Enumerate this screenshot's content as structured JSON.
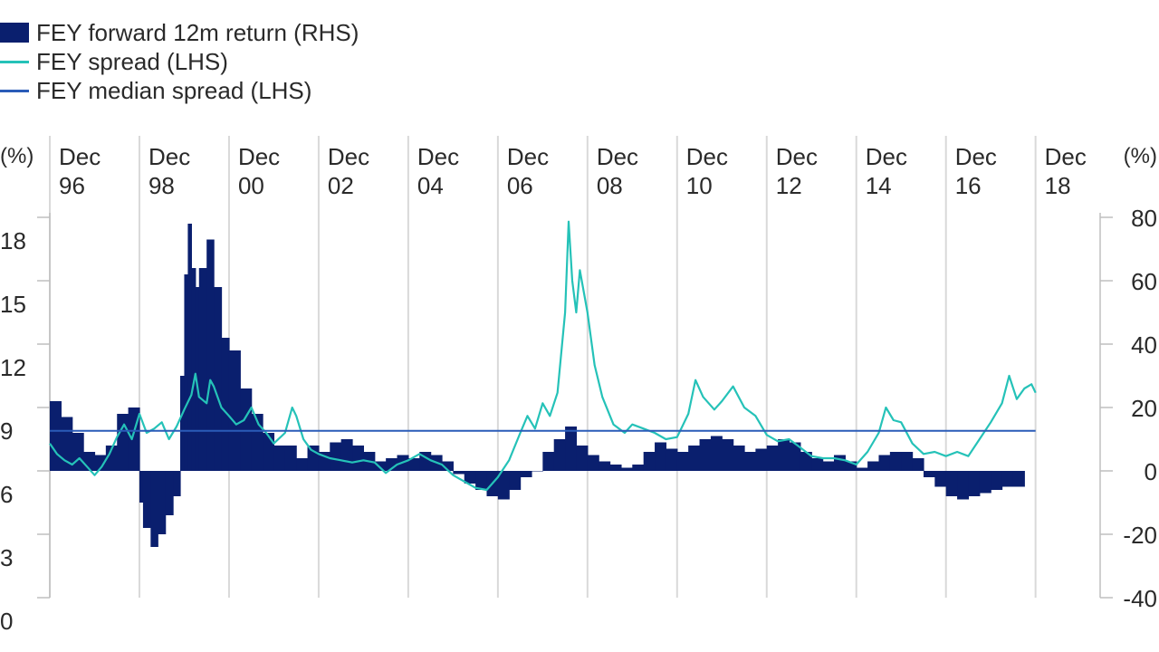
{
  "legend": {
    "returns": "FEY forward 12m return (RHS)",
    "spread": "FEY spread (LHS)",
    "median": "FEY median spread (LHS)"
  },
  "colors": {
    "returns": "#0a1f6e",
    "spread": "#25c2b8",
    "median": "#2a5cb8",
    "grid": "#d9d9d9",
    "axis": "#bfbfbf"
  },
  "chart_data": {
    "type": "bar",
    "left_axis": {
      "unit": "(%)",
      "ylim": [
        0,
        18
      ],
      "ticks": [
        18,
        15,
        12,
        9,
        6,
        3,
        0
      ]
    },
    "right_axis": {
      "unit": "(%)",
      "ylim": [
        -40,
        80
      ],
      "ticks": [
        80,
        60,
        40,
        20,
        0,
        -20,
        -40
      ]
    },
    "x_axis": {
      "range": [
        1996.92,
        2019.25
      ],
      "ticks": [
        {
          "x": 1996.92,
          "line1": "Dec",
          "line2": "96"
        },
        {
          "x": 1998.92,
          "line1": "Dec",
          "line2": "98"
        },
        {
          "x": 2000.92,
          "line1": "Dec",
          "line2": "00"
        },
        {
          "x": 2002.92,
          "line1": "Dec",
          "line2": "02"
        },
        {
          "x": 2004.92,
          "line1": "Dec",
          "line2": "04"
        },
        {
          "x": 2006.92,
          "line1": "Dec",
          "line2": "06"
        },
        {
          "x": 2008.92,
          "line1": "Dec",
          "line2": "08"
        },
        {
          "x": 2010.92,
          "line1": "Dec",
          "line2": "10"
        },
        {
          "x": 2012.92,
          "line1": "Dec",
          "line2": "12"
        },
        {
          "x": 2014.92,
          "line1": "Dec",
          "line2": "14"
        },
        {
          "x": 2016.92,
          "line1": "Dec",
          "line2": "16"
        },
        {
          "x": 2018.92,
          "line1": "Dec",
          "line2": "18"
        }
      ]
    },
    "grid": "vertical",
    "series": [
      {
        "name": "FEY forward 12m return (RHS)",
        "kind": "bar",
        "axis": "right",
        "points": [
          [
            1996.92,
            22
          ],
          [
            1997.17,
            17
          ],
          [
            1997.42,
            12
          ],
          [
            1997.67,
            6
          ],
          [
            1997.92,
            5
          ],
          [
            1998.17,
            8
          ],
          [
            1998.42,
            18
          ],
          [
            1998.67,
            20
          ],
          [
            1998.92,
            -10
          ],
          [
            1999.0,
            -18
          ],
          [
            1999.17,
            -24
          ],
          [
            1999.33,
            -20
          ],
          [
            1999.5,
            -14
          ],
          [
            1999.67,
            -8
          ],
          [
            1999.83,
            30
          ],
          [
            1999.92,
            62
          ],
          [
            2000.0,
            78
          ],
          [
            2000.08,
            64
          ],
          [
            2000.17,
            58
          ],
          [
            2000.25,
            64
          ],
          [
            2000.42,
            73
          ],
          [
            2000.58,
            58
          ],
          [
            2000.75,
            42
          ],
          [
            2000.92,
            38
          ],
          [
            2001.17,
            26
          ],
          [
            2001.42,
            18
          ],
          [
            2001.67,
            12
          ],
          [
            2001.92,
            8
          ],
          [
            2002.17,
            8
          ],
          [
            2002.42,
            4
          ],
          [
            2002.67,
            8
          ],
          [
            2002.92,
            6
          ],
          [
            2003.17,
            9
          ],
          [
            2003.42,
            10
          ],
          [
            2003.67,
            8
          ],
          [
            2003.92,
            6
          ],
          [
            2004.17,
            3
          ],
          [
            2004.42,
            4
          ],
          [
            2004.67,
            5
          ],
          [
            2004.92,
            4
          ],
          [
            2005.17,
            6
          ],
          [
            2005.42,
            5
          ],
          [
            2005.67,
            3
          ],
          [
            2005.92,
            -1
          ],
          [
            2006.17,
            -4
          ],
          [
            2006.42,
            -6
          ],
          [
            2006.67,
            -8
          ],
          [
            2006.92,
            -9
          ],
          [
            2007.17,
            -6
          ],
          [
            2007.42,
            -2
          ],
          [
            2007.67,
            0
          ],
          [
            2007.92,
            6
          ],
          [
            2008.17,
            10
          ],
          [
            2008.42,
            14
          ],
          [
            2008.67,
            8
          ],
          [
            2008.92,
            5
          ],
          [
            2009.17,
            3
          ],
          [
            2009.42,
            2
          ],
          [
            2009.67,
            1
          ],
          [
            2009.92,
            2
          ],
          [
            2010.17,
            6
          ],
          [
            2010.42,
            9
          ],
          [
            2010.67,
            7
          ],
          [
            2010.92,
            6
          ],
          [
            2011.17,
            8
          ],
          [
            2011.42,
            10
          ],
          [
            2011.67,
            11
          ],
          [
            2011.92,
            10
          ],
          [
            2012.17,
            8
          ],
          [
            2012.42,
            6
          ],
          [
            2012.67,
            7
          ],
          [
            2012.92,
            8
          ],
          [
            2013.17,
            10
          ],
          [
            2013.42,
            9
          ],
          [
            2013.67,
            6
          ],
          [
            2013.92,
            4
          ],
          [
            2014.17,
            3
          ],
          [
            2014.42,
            5
          ],
          [
            2014.67,
            3
          ],
          [
            2014.92,
            1
          ],
          [
            2015.17,
            3
          ],
          [
            2015.42,
            5
          ],
          [
            2015.67,
            6
          ],
          [
            2015.92,
            6
          ],
          [
            2016.17,
            4
          ],
          [
            2016.42,
            -2
          ],
          [
            2016.67,
            -5
          ],
          [
            2016.92,
            -8
          ],
          [
            2017.17,
            -9
          ],
          [
            2017.42,
            -8
          ],
          [
            2017.67,
            -7
          ],
          [
            2017.92,
            -6
          ],
          [
            2018.17,
            -5
          ],
          [
            2018.42,
            -5
          ]
        ]
      },
      {
        "name": "FEY spread (LHS)",
        "kind": "line",
        "axis": "left",
        "points": [
          [
            1996.92,
            7.3
          ],
          [
            1997.08,
            6.8
          ],
          [
            1997.25,
            6.5
          ],
          [
            1997.42,
            6.3
          ],
          [
            1997.58,
            6.6
          ],
          [
            1997.75,
            6.2
          ],
          [
            1997.92,
            5.8
          ],
          [
            1998.08,
            6.2
          ],
          [
            1998.25,
            6.8
          ],
          [
            1998.42,
            7.6
          ],
          [
            1998.58,
            8.2
          ],
          [
            1998.75,
            7.5
          ],
          [
            1998.92,
            8.7
          ],
          [
            1999.08,
            7.8
          ],
          [
            1999.25,
            8.0
          ],
          [
            1999.42,
            8.3
          ],
          [
            1999.58,
            7.5
          ],
          [
            1999.75,
            8.1
          ],
          [
            1999.92,
            8.9
          ],
          [
            2000.08,
            9.6
          ],
          [
            2000.17,
            10.6
          ],
          [
            2000.25,
            9.5
          ],
          [
            2000.42,
            9.2
          ],
          [
            2000.5,
            10.3
          ],
          [
            2000.58,
            10.0
          ],
          [
            2000.75,
            9.0
          ],
          [
            2000.92,
            8.6
          ],
          [
            2001.08,
            8.2
          ],
          [
            2001.25,
            8.4
          ],
          [
            2001.42,
            9.0
          ],
          [
            2001.58,
            8.2
          ],
          [
            2001.75,
            7.8
          ],
          [
            2001.92,
            7.3
          ],
          [
            2002.17,
            7.8
          ],
          [
            2002.33,
            9.0
          ],
          [
            2002.42,
            8.6
          ],
          [
            2002.58,
            7.5
          ],
          [
            2002.75,
            7.0
          ],
          [
            2002.92,
            6.8
          ],
          [
            2003.17,
            6.6
          ],
          [
            2003.42,
            6.5
          ],
          [
            2003.67,
            6.4
          ],
          [
            2003.92,
            6.5
          ],
          [
            2004.17,
            6.4
          ],
          [
            2004.42,
            5.9
          ],
          [
            2004.67,
            6.3
          ],
          [
            2004.92,
            6.5
          ],
          [
            2005.17,
            6.8
          ],
          [
            2005.42,
            6.5
          ],
          [
            2005.67,
            6.3
          ],
          [
            2005.92,
            5.8
          ],
          [
            2006.17,
            5.5
          ],
          [
            2006.42,
            5.2
          ],
          [
            2006.67,
            5.1
          ],
          [
            2006.92,
            5.7
          ],
          [
            2007.17,
            6.5
          ],
          [
            2007.42,
            7.8
          ],
          [
            2007.58,
            8.6
          ],
          [
            2007.75,
            8.0
          ],
          [
            2007.92,
            9.2
          ],
          [
            2008.08,
            8.6
          ],
          [
            2008.25,
            9.7
          ],
          [
            2008.42,
            13.5
          ],
          [
            2008.5,
            17.8
          ],
          [
            2008.58,
            15.0
          ],
          [
            2008.67,
            13.5
          ],
          [
            2008.75,
            15.5
          ],
          [
            2008.92,
            13.5
          ],
          [
            2009.08,
            11.0
          ],
          [
            2009.25,
            9.5
          ],
          [
            2009.5,
            8.2
          ],
          [
            2009.75,
            7.8
          ],
          [
            2009.92,
            8.2
          ],
          [
            2010.17,
            8.0
          ],
          [
            2010.42,
            7.8
          ],
          [
            2010.67,
            7.5
          ],
          [
            2010.92,
            7.6
          ],
          [
            2011.17,
            8.7
          ],
          [
            2011.33,
            10.3
          ],
          [
            2011.5,
            9.5
          ],
          [
            2011.75,
            8.9
          ],
          [
            2011.92,
            9.3
          ],
          [
            2012.17,
            10.0
          ],
          [
            2012.42,
            9.0
          ],
          [
            2012.67,
            8.6
          ],
          [
            2012.92,
            7.7
          ],
          [
            2013.17,
            7.4
          ],
          [
            2013.42,
            7.5
          ],
          [
            2013.67,
            7.1
          ],
          [
            2013.92,
            6.7
          ],
          [
            2014.17,
            6.6
          ],
          [
            2014.42,
            6.6
          ],
          [
            2014.67,
            6.5
          ],
          [
            2014.92,
            6.3
          ],
          [
            2015.17,
            6.9
          ],
          [
            2015.42,
            7.8
          ],
          [
            2015.58,
            9.0
          ],
          [
            2015.75,
            8.4
          ],
          [
            2015.92,
            8.3
          ],
          [
            2016.17,
            7.3
          ],
          [
            2016.42,
            6.8
          ],
          [
            2016.67,
            6.9
          ],
          [
            2016.92,
            6.7
          ],
          [
            2017.17,
            6.9
          ],
          [
            2017.42,
            6.7
          ],
          [
            2017.67,
            7.5
          ],
          [
            2017.92,
            8.3
          ],
          [
            2018.17,
            9.2
          ],
          [
            2018.33,
            10.5
          ],
          [
            2018.5,
            9.4
          ],
          [
            2018.67,
            9.9
          ],
          [
            2018.83,
            10.1
          ],
          [
            2018.92,
            9.7
          ]
        ]
      },
      {
        "name": "FEY median spread (LHS)",
        "kind": "line",
        "axis": "left",
        "points": [
          [
            1996.92,
            7.9
          ],
          [
            2018.92,
            7.9
          ]
        ]
      }
    ]
  }
}
